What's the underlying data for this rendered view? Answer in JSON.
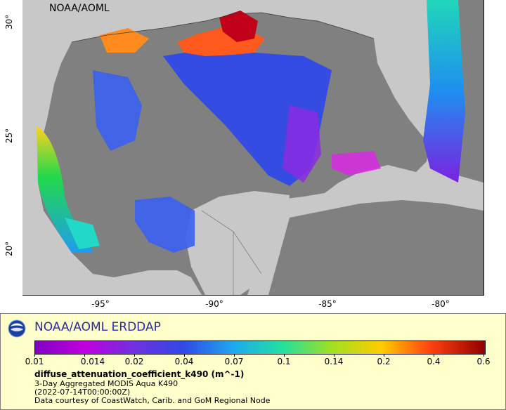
{
  "map": {
    "watermark": "NOAA/AOML",
    "lon_ticks": [
      "-95°",
      "-90°",
      "-85°",
      "-80°"
    ],
    "lat_ticks": [
      "30°",
      "25°",
      "20°"
    ],
    "colors": {
      "land": "#c8c8c8",
      "no_data": "#808080",
      "ocean_low": "#2f49e6"
    }
  },
  "legend": {
    "logo_icon": "noaa-logo-icon",
    "title": "NOAA/AOML ERDDAP",
    "colorbar_labels": [
      "0.01",
      "0.014",
      "0.02",
      "0.04",
      "0.07",
      "0.1",
      "0.14",
      "0.2",
      "0.4",
      "0.6"
    ],
    "variable": "diffuse_attenuation_coefficient_k490 (m^-1)",
    "dataset": "3-Day Aggregated MODIS Aqua K490",
    "time": "(2022-07-14T00:00:00Z)",
    "credit": "Data courtesy of CoastWatch, Carib. and GoM Regional Node"
  }
}
